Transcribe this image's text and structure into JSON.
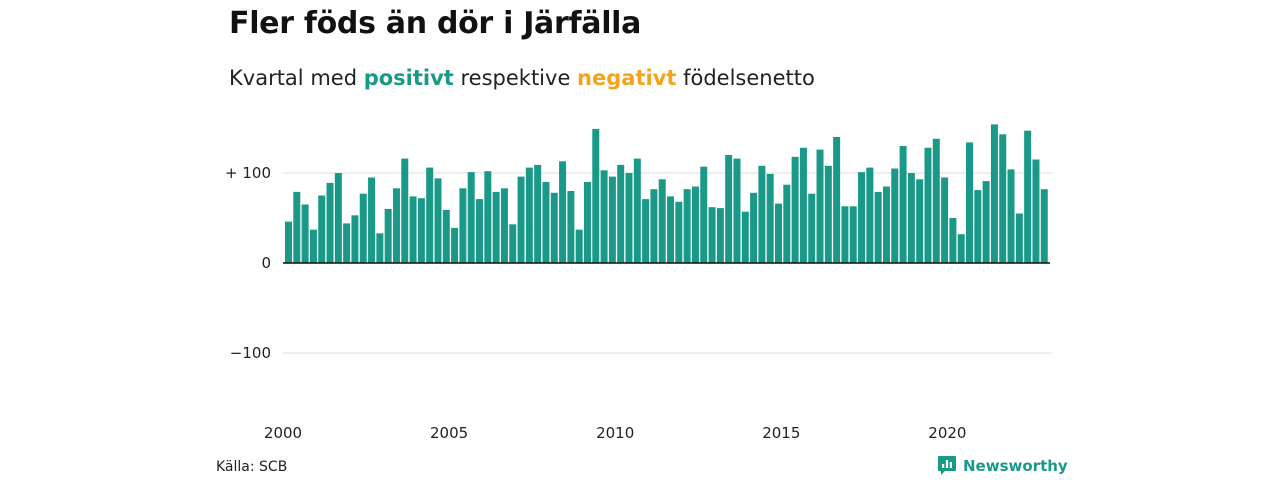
{
  "title": "Fler föds än dör i Järfälla",
  "subtitle": {
    "prefix": "Kvartal med ",
    "positive": "positivt",
    "middle": " respektive ",
    "negative": "negativt",
    "suffix": " födelsenetto"
  },
  "colors": {
    "positive": "#1a9988",
    "negative": "#f2a51c",
    "gridline": "#dddddd",
    "baseline": "#111111"
  },
  "chart_data": {
    "type": "bar",
    "title": "Fler föds än dör i Järfälla",
    "subtitle": "Kvartal med positivt respektive negativt födelsenetto",
    "x_start_year": 2000,
    "x_start_quarter": 1,
    "ylim": [
      -135,
      165
    ],
    "grid": true,
    "y_ticks": [
      {
        "value": 100,
        "label": "+ 100"
      },
      {
        "value": 0,
        "label": "0"
      },
      {
        "value": -100,
        "label": "−100"
      }
    ],
    "x_ticks": [
      {
        "year": 2000,
        "label": "2000"
      },
      {
        "year": 2005,
        "label": "2005"
      },
      {
        "year": 2010,
        "label": "2010"
      },
      {
        "year": 2015,
        "label": "2015"
      },
      {
        "year": 2020,
        "label": "2020"
      }
    ],
    "values": [
      46,
      79,
      65,
      37,
      75,
      89,
      100,
      44,
      53,
      77,
      95,
      33,
      60,
      83,
      116,
      74,
      72,
      106,
      94,
      59,
      39,
      83,
      101,
      71,
      102,
      79,
      83,
      43,
      96,
      106,
      109,
      90,
      78,
      113,
      80,
      37,
      90,
      149,
      103,
      96,
      109,
      100,
      116,
      71,
      82,
      93,
      74,
      68,
      82,
      85,
      107,
      62,
      61,
      120,
      116,
      57,
      78,
      108,
      99,
      66,
      87,
      118,
      128,
      77,
      126,
      108,
      140,
      63,
      63,
      101,
      106,
      79,
      85,
      105,
      130,
      100,
      93,
      128,
      138,
      95,
      50,
      32,
      134,
      81,
      91,
      154,
      143,
      104,
      55,
      147,
      115,
      82
    ]
  },
  "footer": {
    "source": "Källa: SCB",
    "brand": "Newsworthy"
  }
}
